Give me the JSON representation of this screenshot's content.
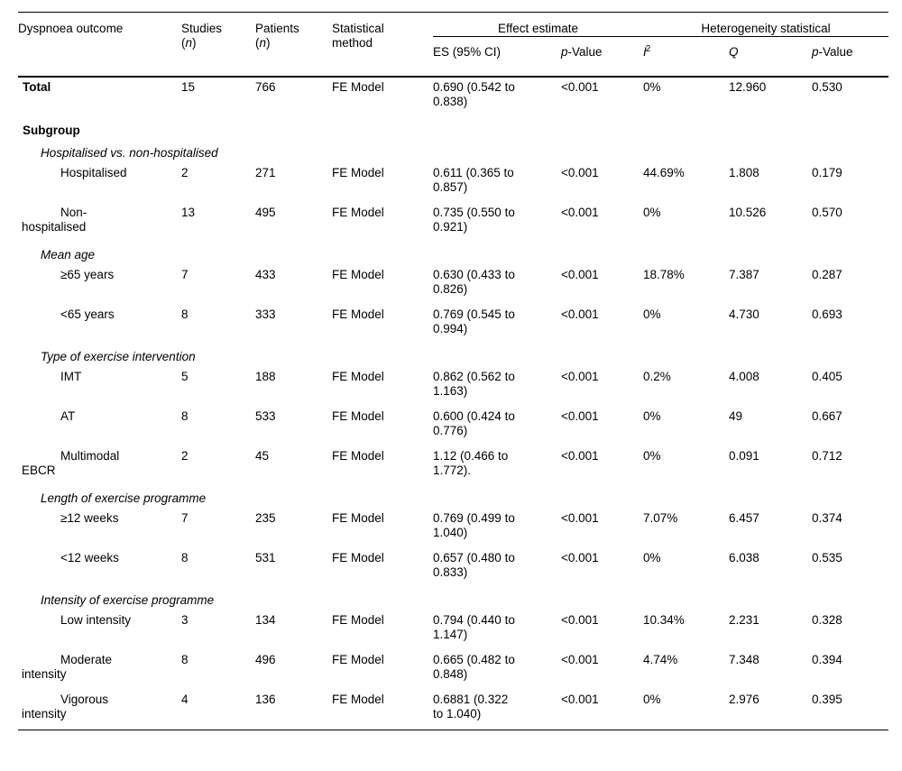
{
  "header": {
    "outcome": "Dyspnoea outcome",
    "studies": "Studies",
    "patients": "Patients",
    "method": "Statistical method",
    "unit_open": "(",
    "unit_n": "n",
    "unit_close": ")",
    "group_effect": "Effect estimate",
    "group_heterogeneity": "Heterogeneity statistical",
    "sub_es": "ES (95% CI)",
    "p_italic": "p",
    "p_suffix": "-Value",
    "i_symbol": "I",
    "i_sup": "2",
    "q_symbol": "Q"
  },
  "rows": [
    {
      "type": "total",
      "label": "Total",
      "studies": "15",
      "patients": "766",
      "method": "FE Model",
      "es": "0.690 (0.542 to 0.838)",
      "p": "<0.001",
      "i2": "0%",
      "q": "12.960",
      "pq": "0.530"
    },
    {
      "type": "group",
      "label": "Subgroup"
    },
    {
      "type": "section",
      "label": "Hospitalised vs. non-hospitalised"
    },
    {
      "type": "item",
      "label": "Hospitalised",
      "studies": "2",
      "patients": "271",
      "method": "FE Model",
      "es": "0.611 (0.365 to 0.857)",
      "p": "<0.001",
      "i2": "44.69%",
      "q": "1.808",
      "pq": "0.179"
    },
    {
      "type": "item",
      "label": "Non-hospitalised",
      "studies": "13",
      "patients": "495",
      "method": "FE Model",
      "es": "0.735 (0.550 to 0.921)",
      "p": "<0.001",
      "i2": "0%",
      "q": "10.526",
      "pq": "0.570"
    },
    {
      "type": "section",
      "label": "Mean age"
    },
    {
      "type": "item",
      "label": "≥65 years",
      "studies": "7",
      "patients": "433",
      "method": "FE Model",
      "es": "0.630 (0.433 to 0.826)",
      "p": "<0.001",
      "i2": "18.78%",
      "q": "7.387",
      "pq": "0.287"
    },
    {
      "type": "item",
      "label": "<65 years",
      "studies": "8",
      "patients": "333",
      "method": "FE Model",
      "es": "0.769 (0.545 to 0.994)",
      "p": "<0.001",
      "i2": "0%",
      "q": "4.730",
      "pq": "0.693"
    },
    {
      "type": "section",
      "label": "Type of exercise intervention"
    },
    {
      "type": "item",
      "label": "IMT",
      "studies": "5",
      "patients": "188",
      "method": "FE Model",
      "es": "0.862 (0.562 to 1.163)",
      "p": "<0.001",
      "i2": "0.2%",
      "q": "4.008",
      "pq": "0.405"
    },
    {
      "type": "item",
      "label": "AT",
      "studies": "8",
      "patients": "533",
      "method": "FE Model",
      "es": "0.600 (0.424 to 0.776)",
      "p": "<0.001",
      "i2": "0%",
      "q": "49",
      "pq": "0.667"
    },
    {
      "type": "item",
      "label": "Multimodal EBCR",
      "studies": "2",
      "patients": "45",
      "method": "FE Model",
      "es": "1.12 (0.466 to 1.772).",
      "p": "<0.001",
      "i2": "0%",
      "q": "0.091",
      "pq": "0.712"
    },
    {
      "type": "section",
      "label": "Length of exercise programme"
    },
    {
      "type": "item",
      "label": "≥12 weeks",
      "studies": "7",
      "patients": "235",
      "method": "FE Model",
      "es": "0.769 (0.499 to 1.040)",
      "p": "<0.001",
      "i2": "7.07%",
      "q": "6.457",
      "pq": "0.374"
    },
    {
      "type": "item",
      "label": "<12 weeks",
      "studies": "8",
      "patients": "531",
      "method": "FE Model",
      "es": "0.657 (0.480 to 0.833)",
      "p": "<0.001",
      "i2": "0%",
      "q": "6.038",
      "pq": "0.535"
    },
    {
      "type": "section",
      "label": "Intensity of exercise programme"
    },
    {
      "type": "item",
      "label": "Low intensity",
      "studies": "3",
      "patients": "134",
      "method": "FE Model",
      "es": "0.794 (0.440 to 1.147)",
      "p": "<0.001",
      "i2": "10.34%",
      "q": "2.231",
      "pq": "0.328"
    },
    {
      "type": "item",
      "label": "Moderate intensity",
      "studies": "8",
      "patients": "496",
      "method": "FE Model",
      "es": "0.665 (0.482 to 0.848)",
      "p": "<0.001",
      "i2": "4.74%",
      "q": "7.348",
      "pq": "0.394"
    },
    {
      "type": "item",
      "label": "Vigorous intensity",
      "studies": "4",
      "patients": "136",
      "method": "FE Model",
      "es": "0.6881 (0.322 to 1.040)",
      "p": "<0.001",
      "i2": "0%",
      "q": "2.976",
      "pq": "0.395"
    }
  ]
}
